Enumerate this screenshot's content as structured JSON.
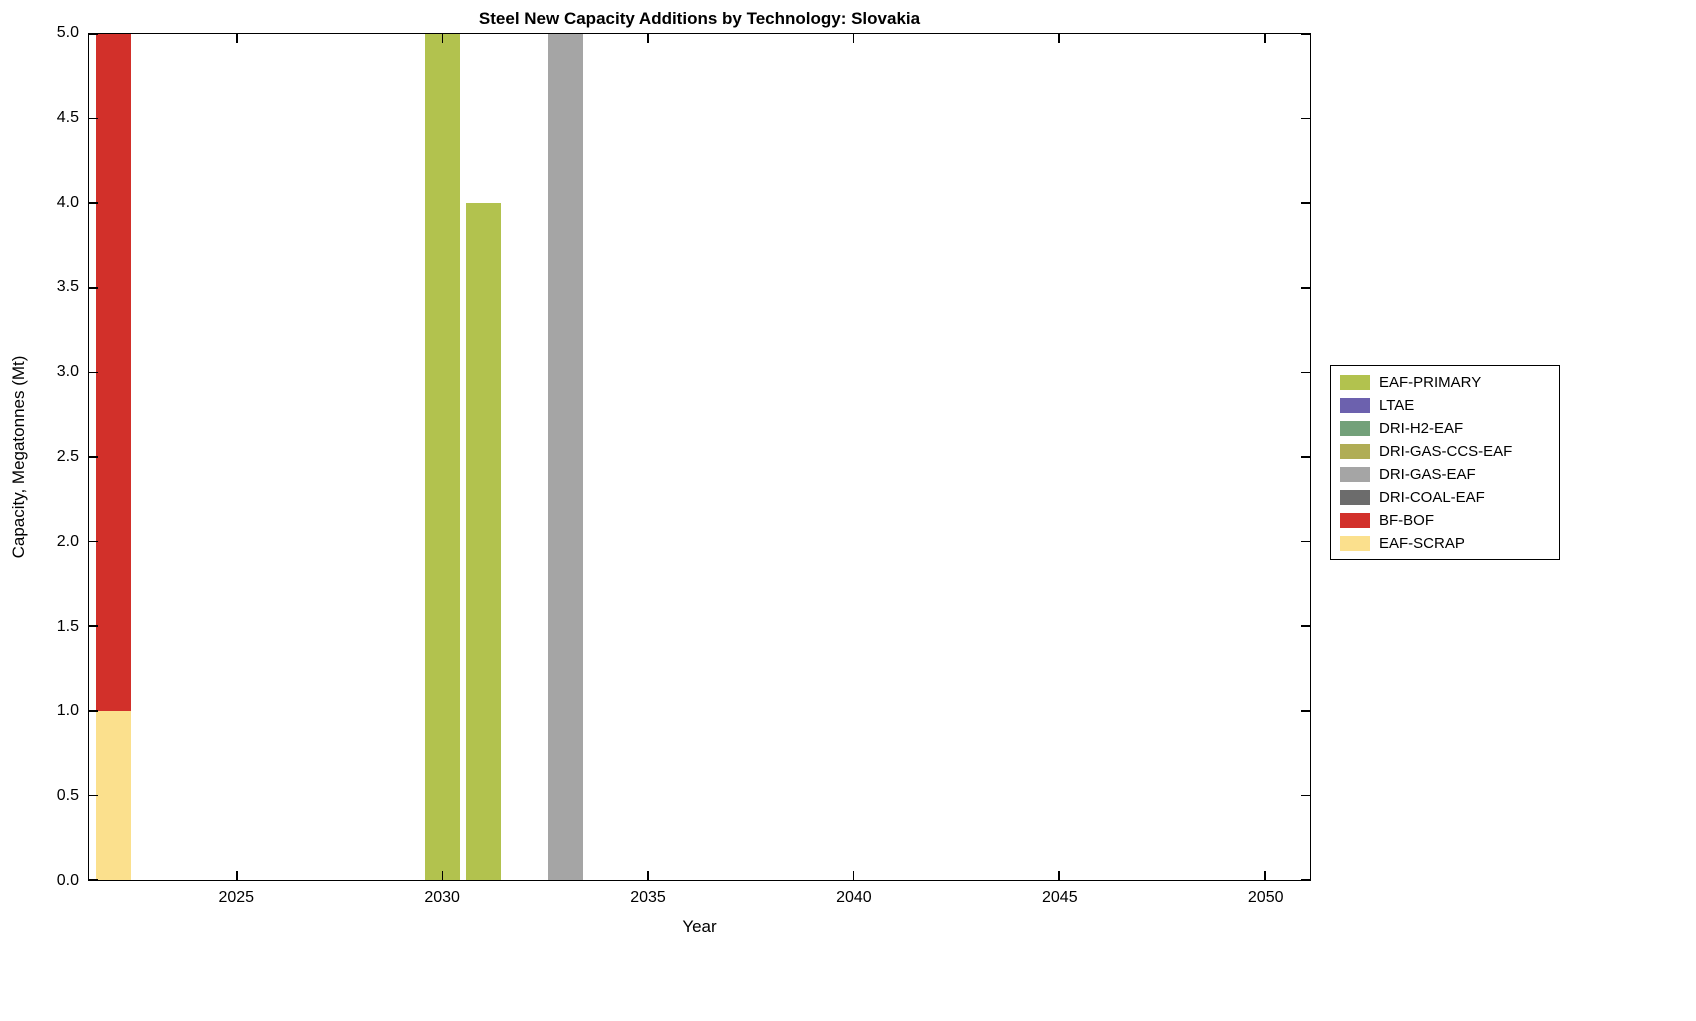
{
  "chart_data": {
    "type": "bar",
    "stacked": true,
    "title": "Steel New Capacity Additions by Technology: Slovakia",
    "xlabel": "Year",
    "ylabel": "Capacity, Megatonnes (Mt)",
    "xlim": [
      2021.4,
      2051.1
    ],
    "ylim": [
      0,
      5
    ],
    "grid": false,
    "legend_position": "right-outside",
    "bar_width_years": 0.85,
    "xticks": [
      {
        "value": 2025,
        "label": "2025"
      },
      {
        "value": 2030,
        "label": "2030"
      },
      {
        "value": 2035,
        "label": "2035"
      },
      {
        "value": 2040,
        "label": "2040"
      },
      {
        "value": 2045,
        "label": "2045"
      },
      {
        "value": 2050,
        "label": "2050"
      }
    ],
    "yticks": [
      {
        "value": 0,
        "label": "0.0"
      },
      {
        "value": 0.5,
        "label": "0.5"
      },
      {
        "value": 1,
        "label": "1.0"
      },
      {
        "value": 1.5,
        "label": "1.5"
      },
      {
        "value": 2,
        "label": "2.0"
      },
      {
        "value": 2.5,
        "label": "2.5"
      },
      {
        "value": 3,
        "label": "3.0"
      },
      {
        "value": 3.5,
        "label": "3.5"
      },
      {
        "value": 4,
        "label": "4.0"
      },
      {
        "value": 4.5,
        "label": "4.5"
      },
      {
        "value": 5,
        "label": "5.0"
      }
    ],
    "series": [
      {
        "name": "EAF-PRIMARY",
        "color": "#b2c24e",
        "points": [
          {
            "x": 2030,
            "y": 5.0
          },
          {
            "x": 2031,
            "y": 4.0
          }
        ]
      },
      {
        "name": "LTAE",
        "color": "#6c61ae",
        "points": []
      },
      {
        "name": "DRI-H2-EAF",
        "color": "#73a17a",
        "points": []
      },
      {
        "name": "DRI-GAS-CCS-EAF",
        "color": "#b0ad55",
        "points": []
      },
      {
        "name": "DRI-GAS-EAF",
        "color": "#a5a5a5",
        "points": [
          {
            "x": 2033,
            "y": 5.0
          }
        ]
      },
      {
        "name": "DRI-COAL-EAF",
        "color": "#6c6c6c",
        "points": []
      },
      {
        "name": "BF-BOF",
        "color": "#d2302a",
        "points": [
          {
            "x": 2022,
            "y": 4.0
          }
        ]
      },
      {
        "name": "EAF-SCRAP",
        "color": "#fbe08d",
        "points": [
          {
            "x": 2022,
            "y": 1.0
          }
        ]
      }
    ],
    "stack_order_note": "stacked bottom-to-top in reverse series order (EAF-SCRAP at bottom, EAF-PRIMARY at top)"
  }
}
